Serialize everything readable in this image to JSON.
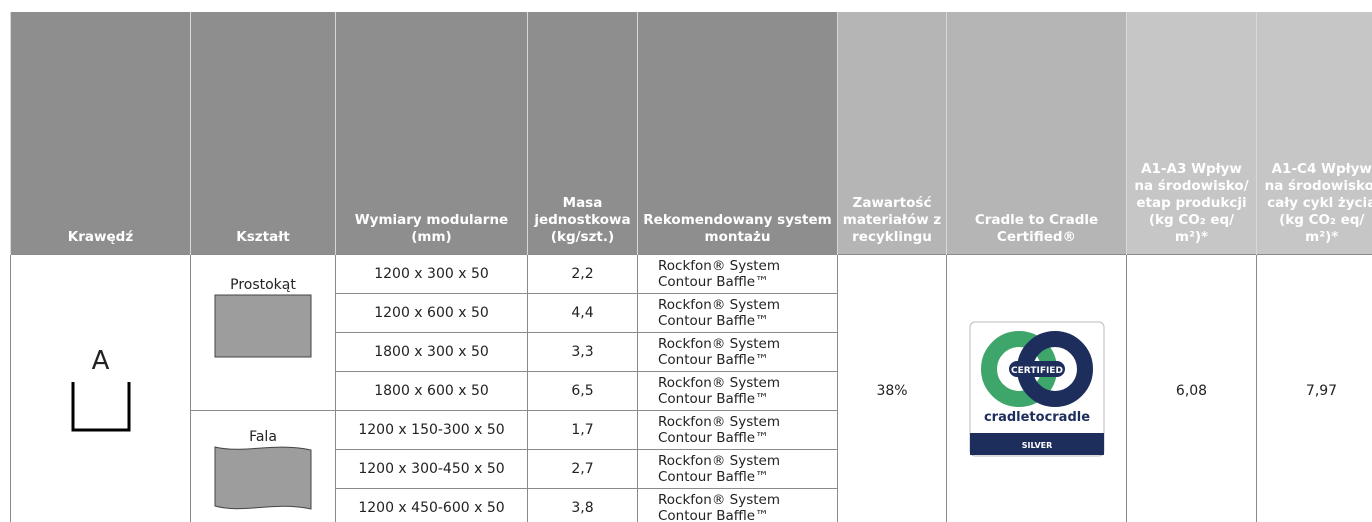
{
  "table": {
    "headers": [
      "Krawędź",
      "Kształt",
      "Wymiary modularne (mm)",
      "Masa jednostkowa (kg/szt.)",
      "Rekomendowany system montażu",
      "Zawartość materiałów z recyklingu",
      "Cradle to Cradle Certified®",
      "A1-A3 Wpływ na środowisko/ etap produkcji (kg CO₂ eq/ m²)*",
      "A1-C4 Wpływ na środowisko/ cały cykl życia (kg CO₂ eq/ m²)*"
    ],
    "edge": "A",
    "shapes": [
      {
        "label": "Prostokąt",
        "rows": 4
      },
      {
        "label": "Fala",
        "rows": 3
      }
    ],
    "rows": [
      [
        "1200 x 300 x 50",
        "2,2",
        "Rockfon® System Contour Baffle™"
      ],
      [
        "1200 x 600 x 50",
        "4,4",
        "Rockfon® System Contour Baffle™"
      ],
      [
        "1800 x 300 x 50",
        "3,3",
        "Rockfon® System Contour Baffle™"
      ],
      [
        "1800 x 600 x 50",
        "6,5",
        "Rockfon® System Contour Baffle™"
      ],
      [
        "1200 x 150-300 x 50",
        "1,7",
        "Rockfon® System Contour Baffle™"
      ],
      [
        "1200 x 300-450 x 50",
        "2,7",
        "Rockfon® System Contour Baffle™"
      ],
      [
        "1200 x 450-600 x 50",
        "3,8",
        "Rockfon® System Contour Baffle™"
      ]
    ],
    "recycled": "38%",
    "certification": {
      "badge": "CERTIFIED",
      "brand": "cradletocradle",
      "level": "SILVER"
    },
    "a1a3": "6,08",
    "a1c4": "7,97"
  }
}
